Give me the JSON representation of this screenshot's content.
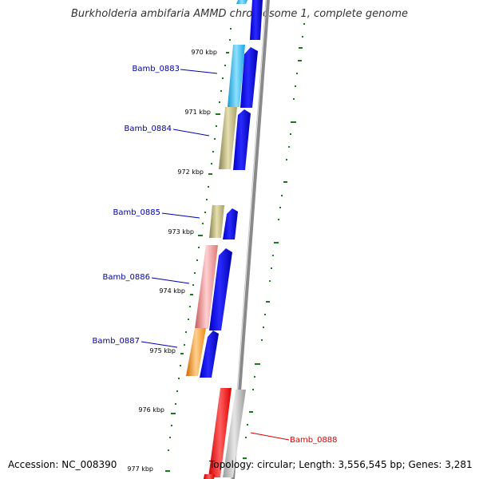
{
  "title": "Burkholderia ambifaria AMMD chromosome 1, complete genome",
  "accession": "Accession: NC_008390",
  "summary": "Topology: circular; Length: 3,556,545 bp; Genes: 3,281",
  "ticks": [
    "970 kbp",
    "971 kbp",
    "972 kbp",
    "973 kbp",
    "974 kbp",
    "975 kbp",
    "976 kbp",
    "977 kbp"
  ],
  "genes": [
    {
      "name": "Bamb_0883",
      "color": "#2bb3e8"
    },
    {
      "name": "Bamb_0884",
      "color": "#b5ad6a"
    },
    {
      "name": "Bamb_0885",
      "color": "#b5ad6a"
    },
    {
      "name": "Bamb_0886",
      "color": "#e88080"
    },
    {
      "name": "Bamb_0887",
      "color": "#f08c14"
    },
    {
      "name": "Bamb_0888",
      "color": "#ee1111"
    }
  ],
  "colors": {
    "label_forward": "#0000aa",
    "label_reverse": "#dd0000",
    "cds_forward": "#0000ee",
    "cds_reverse": "#b0b0b0",
    "backbone": "#888888",
    "gc_ticks": "#1a7a1a"
  }
}
